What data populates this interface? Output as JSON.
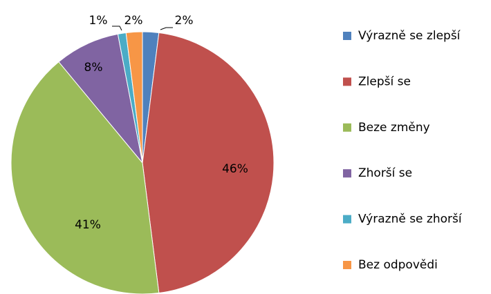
{
  "chart_data": {
    "type": "pie",
    "categories": [
      "Výrazně se zlepší",
      "Zlepší se",
      "Beze změny",
      "Zhorší se",
      "Výrazně se zhorší",
      "Bez odpovědi"
    ],
    "values": [
      2,
      46,
      41,
      8,
      1,
      2
    ],
    "value_labels": [
      "2%",
      "46%",
      "41%",
      "8%",
      "1%",
      "2%"
    ],
    "colors": [
      "#4f81bd",
      "#c0504d",
      "#9bbb59",
      "#8064a2",
      "#4bacc6",
      "#f79646"
    ],
    "legend": "right"
  }
}
